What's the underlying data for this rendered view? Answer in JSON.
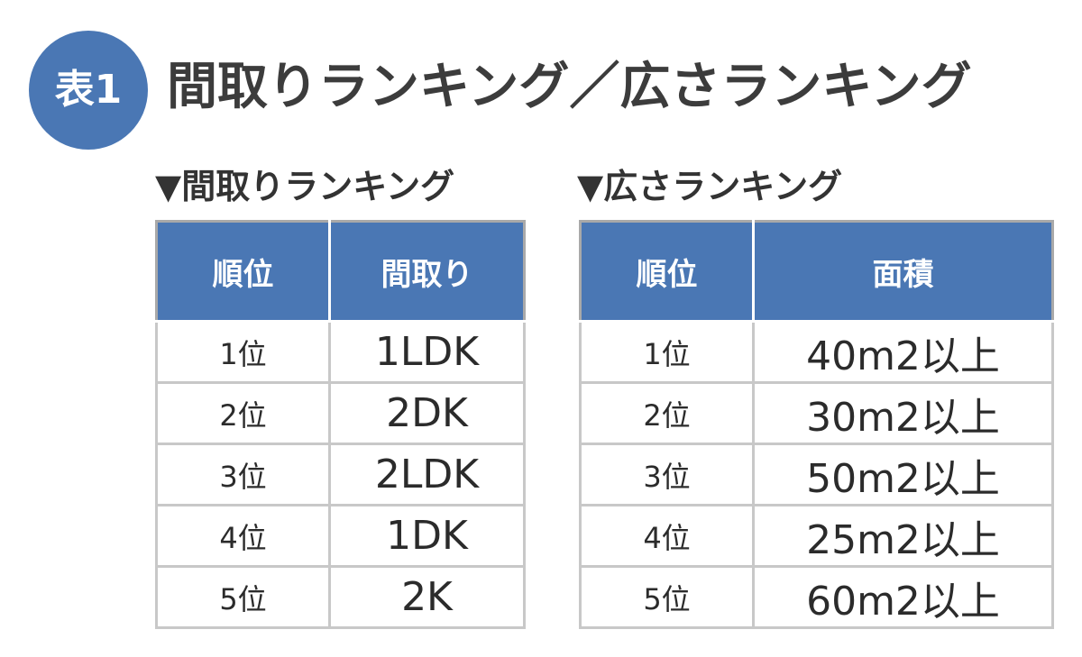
{
  "badge": "表1",
  "title": "間取りランキング／広さランキング",
  "layout_ranking": {
    "heading": "▼間取りランキング",
    "columns": [
      "順位",
      "間取り"
    ],
    "rows": [
      {
        "rank": "1位",
        "value": "1LDK"
      },
      {
        "rank": "2位",
        "value": "2DK"
      },
      {
        "rank": "3位",
        "value": "2LDK"
      },
      {
        "rank": "4位",
        "value": "1DK"
      },
      {
        "rank": "5位",
        "value": "2K"
      }
    ]
  },
  "area_ranking": {
    "heading": "▼広さランキング",
    "columns": [
      "順位",
      "面積"
    ],
    "rows": [
      {
        "rank": "1位",
        "value": "40m2以上"
      },
      {
        "rank": "2位",
        "value": "30m2以上"
      },
      {
        "rank": "3位",
        "value": "50m2以上"
      },
      {
        "rank": "4位",
        "value": "25m2以上"
      },
      {
        "rank": "5位",
        "value": "60m2以上"
      }
    ]
  },
  "colors": {
    "accent": "#4a77b4",
    "border": "#a9a9a9"
  }
}
